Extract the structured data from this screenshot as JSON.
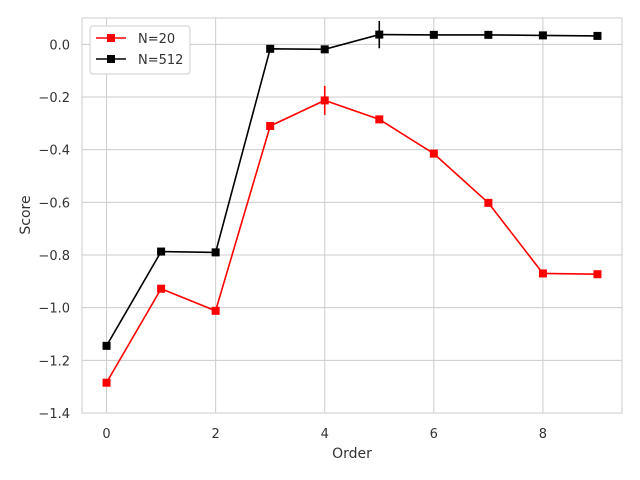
{
  "chart_data": {
    "type": "line",
    "title": "",
    "xlabel": "Order",
    "ylabel": "Score",
    "xlim": [
      -0.45,
      9.45
    ],
    "ylim": [
      -1.4,
      0.1
    ],
    "xticks": [
      0,
      2,
      4,
      6,
      8
    ],
    "xtick_labels": [
      "0",
      "2",
      "4",
      "6",
      "8"
    ],
    "yticks": [
      -1.4,
      -1.2,
      -1.0,
      -0.8,
      -0.6,
      -0.4,
      -0.2,
      0.0
    ],
    "ytick_labels": [
      "−1.4",
      "−1.2",
      "−1.0",
      "−0.8",
      "−0.6",
      "−0.4",
      "−0.2",
      "0.0"
    ],
    "grid": true,
    "legend_position": "top-left",
    "x": [
      0,
      1,
      2,
      3,
      4,
      5,
      6,
      7,
      8,
      9
    ],
    "series": [
      {
        "name": "N=20",
        "color": "#ff0000",
        "marker": "square",
        "values": [
          -1.285,
          -0.928,
          -1.012,
          -0.31,
          -0.213,
          -0.285,
          -0.415,
          -0.602,
          -0.87,
          -0.873
        ],
        "errors": [
          0.0,
          0.0,
          0.0,
          0.0,
          0.055,
          0.0,
          0.0,
          0.0,
          0.0,
          0.0
        ]
      },
      {
        "name": "N=512",
        "color": "#000000",
        "marker": "square",
        "values": [
          -1.145,
          -0.787,
          -0.79,
          -0.017,
          -0.019,
          0.037,
          0.036,
          0.036,
          0.034,
          0.032
        ],
        "errors": [
          0.0,
          0.0,
          0.0,
          0.0,
          0.0,
          0.052,
          0.0,
          0.0,
          0.0,
          0.0
        ]
      }
    ]
  }
}
